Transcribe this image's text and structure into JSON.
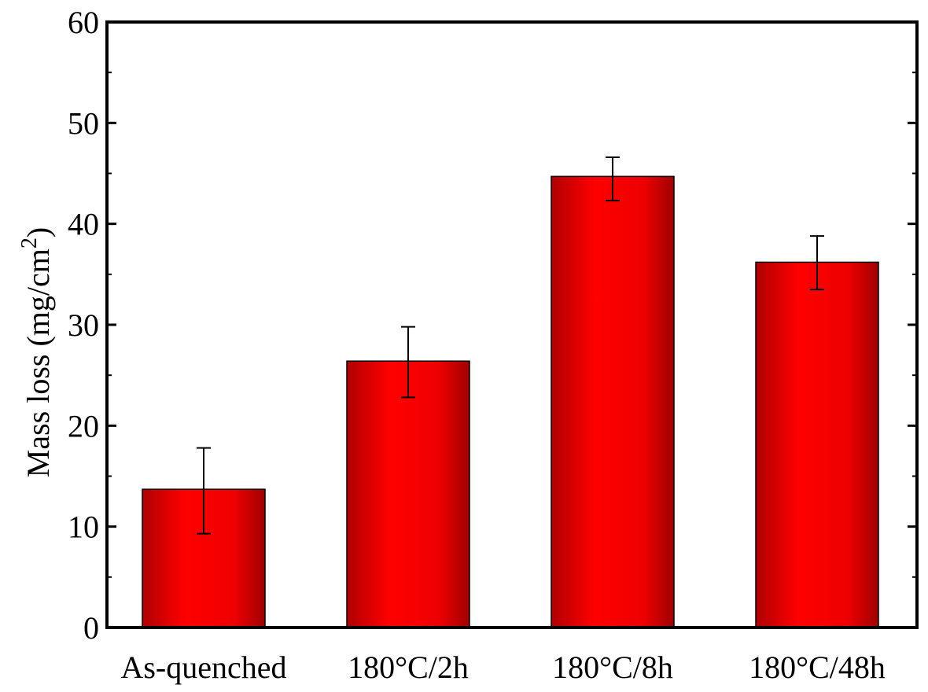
{
  "chart_data": {
    "type": "bar",
    "categories": [
      "As-quenched",
      "180°C/2h",
      "180°C/8h",
      "180°C/48h"
    ],
    "values": [
      13.7,
      26.4,
      44.7,
      36.2
    ],
    "errors_upper": [
      17.8,
      29.8,
      46.6,
      38.8
    ],
    "errors_lower": [
      9.3,
      22.8,
      42.3,
      33.5
    ],
    "title": "",
    "xlabel": "",
    "ylabel": "Mass loss (mg/cm",
    "ylabel_superscript": "2",
    "ylabel_suffix": ")",
    "ylim": [
      0,
      60
    ],
    "yticks": [
      0,
      10,
      20,
      30,
      40,
      50,
      60
    ],
    "grid": false,
    "bar_color": "#ff0000",
    "bar_edge_color": "#8a0000",
    "axis_color": "#000000"
  }
}
